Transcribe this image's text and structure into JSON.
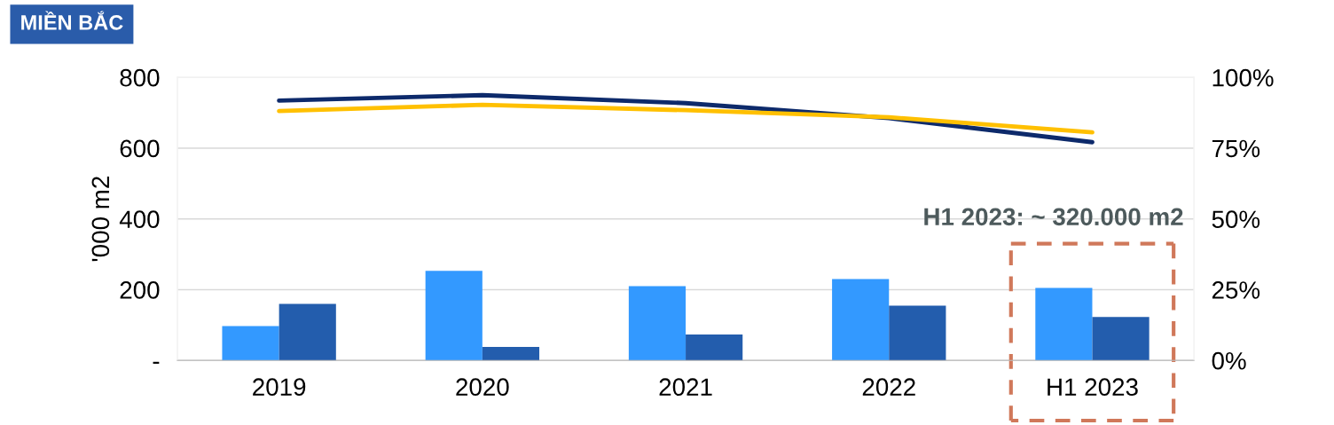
{
  "chart_data": {
    "type": "bar",
    "title": "MIỀN BẮC",
    "ylabel": "'000 m2",
    "categories": [
      "2019",
      "2020",
      "2021",
      "2022",
      "H1 2023"
    ],
    "series": [
      {
        "color": "#3399ff",
        "values": [
          97,
          253,
          210,
          230,
          205
        ]
      },
      {
        "color": "#235dad",
        "values": [
          160,
          38,
          73,
          155,
          123
        ]
      },
      {
        "type": "line",
        "axis": "y2",
        "color": "#0d2a6b",
        "values": [
          91.8,
          93.7,
          90.9,
          85.6,
          77.1
        ]
      },
      {
        "type": "line",
        "axis": "y2",
        "color": "#ffc000",
        "values": [
          88.1,
          90.3,
          88.4,
          85.9,
          80.6
        ]
      }
    ],
    "ylim": [
      0,
      800
    ],
    "yticks": [
      {
        "value": 0,
        "label": "-"
      },
      200,
      400,
      600,
      800
    ],
    "y2lim": [
      0,
      100
    ],
    "y2ticks": [
      {
        "value": 0,
        "label": "0%"
      },
      {
        "value": 25,
        "label": "25%"
      },
      {
        "value": 50,
        "label": "50%"
      },
      {
        "value": 75,
        "label": "75%"
      },
      {
        "value": 100,
        "label": "100%"
      }
    ],
    "grid": "y",
    "legend": false,
    "marker": "none",
    "line_style": "solid",
    "annotations": [
      "H1 2023: ~ 320.000 m2"
    ]
  }
}
